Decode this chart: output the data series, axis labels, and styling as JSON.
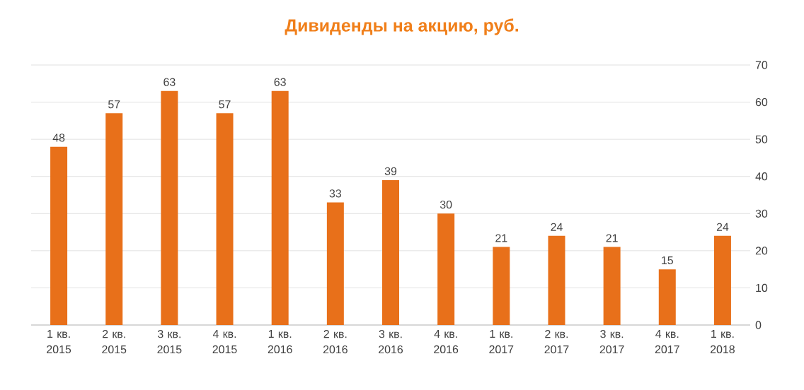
{
  "chart_data": {
    "type": "bar",
    "title": "Дивиденды на акцию, руб.",
    "categories": [
      "1 кв. 2015",
      "2 кв. 2015",
      "3 кв. 2015",
      "4 кв. 2015",
      "1 кв. 2016",
      "2 кв. 2016",
      "3 кв. 2016",
      "4 кв. 2016",
      "1 кв. 2017",
      "2 кв. 2017",
      "3 кв. 2017",
      "4 кв. 2017",
      "1 кв. 2018"
    ],
    "values": [
      48,
      57,
      63,
      57,
      63,
      33,
      39,
      30,
      21,
      24,
      21,
      15,
      24
    ],
    "color": "#e8701a",
    "ylim": [
      0,
      70
    ],
    "yticks": [
      0,
      10,
      20,
      30,
      40,
      50,
      60,
      70
    ],
    "grid": "y",
    "data_labels": true
  }
}
